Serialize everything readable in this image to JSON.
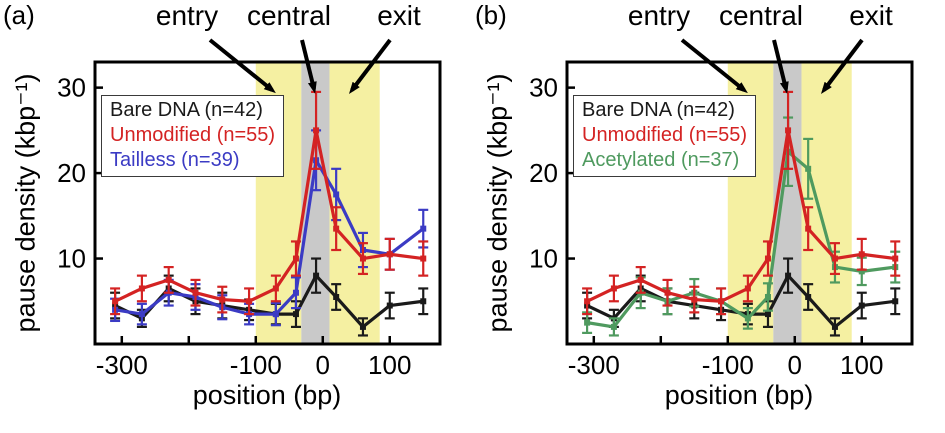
{
  "chart_data": {
    "type": "line",
    "title": "",
    "xlabel": "position (bp)",
    "ylabel": "pause density (kbp⁻¹)",
    "xlim": [
      -340,
      175
    ],
    "ylim": [
      0,
      33
    ],
    "x": [
      -310,
      -270,
      -230,
      -190,
      -150,
      -110,
      -70,
      -40,
      -10,
      20,
      60,
      100,
      150
    ],
    "xticks": [
      {
        "v": -300,
        "label": "-300"
      },
      {
        "v": -200,
        "label": ""
      },
      {
        "v": -100,
        "label": "-100"
      },
      {
        "v": 0,
        "label": "0"
      },
      {
        "v": 100,
        "label": "100"
      }
    ],
    "yticks": [
      {
        "v": 10,
        "label": "10"
      },
      {
        "v": 20,
        "label": "20"
      },
      {
        "v": 30,
        "label": "30"
      }
    ],
    "regions": [
      {
        "name": "entry",
        "from": -100,
        "to": -32,
        "color": "#f5f0a2"
      },
      {
        "name": "exit",
        "from": 10,
        "to": 85,
        "color": "#f5f0a2"
      },
      {
        "name": "central",
        "from": -32,
        "to": 10,
        "color": "#c9c9c9"
      }
    ],
    "annotations": [
      "entry",
      "central",
      "exit"
    ],
    "panels": [
      {
        "label": "(a)",
        "series": [
          {
            "name": "Bare DNA",
            "legend": "Bare DNA (n=42)",
            "color": "#1a1a1a",
            "y": [
              4.5,
              3.0,
              6.5,
              5.0,
              4.5,
              4.0,
              3.5,
              3.5,
              8.0,
              5.5,
              2.0,
              4.5,
              5.0
            ],
            "err": [
              1.5,
              1.0,
              1.5,
              1.5,
              1.5,
              1.2,
              1.2,
              1.5,
              2.0,
              1.5,
              1.0,
              1.5,
              1.5
            ]
          },
          {
            "name": "Tailless",
            "legend": "Tailless (n=39)",
            "color": "#3b3bc4",
            "y": [
              4.0,
              3.5,
              6.0,
              5.5,
              4.3,
              3.5,
              3.5,
              6.0,
              21.5,
              17.5,
              11.0,
              10.5,
              13.5
            ],
            "err": [
              1.3,
              1.2,
              1.5,
              1.5,
              1.4,
              1.2,
              1.3,
              1.8,
              3.5,
              3.0,
              2.0,
              1.8,
              2.2
            ]
          },
          {
            "name": "Unmodified",
            "legend": "Unmodified (n=55)",
            "color": "#d42323",
            "y": [
              5.0,
              6.5,
              7.5,
              6.0,
              5.2,
              5.0,
              6.5,
              10.0,
              25.0,
              13.5,
              10.0,
              10.5,
              10.0
            ],
            "err": [
              1.5,
              1.5,
              1.5,
              1.5,
              1.5,
              1.5,
              1.5,
              2.0,
              4.5,
              2.5,
              1.8,
              1.8,
              2.0
            ]
          }
        ],
        "legend_order": [
          "Bare DNA (n=42)",
          "Unmodified (n=55)",
          "Tailless (n=39)"
        ]
      },
      {
        "label": "(b)",
        "series": [
          {
            "name": "Bare DNA",
            "legend": "Bare DNA (n=42)",
            "color": "#1a1a1a",
            "y": [
              4.5,
              3.0,
              6.5,
              5.0,
              4.5,
              4.0,
              3.5,
              3.5,
              8.0,
              5.5,
              2.0,
              4.5,
              5.0
            ],
            "err": [
              1.5,
              1.0,
              1.5,
              1.5,
              1.5,
              1.2,
              1.2,
              1.5,
              2.0,
              1.5,
              1.0,
              1.5,
              1.5
            ]
          },
          {
            "name": "Acetylated",
            "legend": "Acetylated (n=37)",
            "color": "#4f9a5f",
            "y": [
              2.5,
              2.0,
              6.0,
              5.0,
              6.0,
              5.0,
              3.0,
              5.5,
              22.5,
              20.5,
              9.0,
              8.5,
              9.0
            ],
            "err": [
              1.2,
              1.0,
              1.8,
              1.5,
              1.6,
              1.5,
              1.2,
              1.6,
              4.0,
              3.5,
              1.8,
              1.6,
              1.8
            ]
          },
          {
            "name": "Unmodified",
            "legend": "Unmodified (n=55)",
            "color": "#d42323",
            "y": [
              5.0,
              6.5,
              7.5,
              6.0,
              5.2,
              5.0,
              6.5,
              10.0,
              25.0,
              13.5,
              10.0,
              10.5,
              10.0
            ],
            "err": [
              1.5,
              1.5,
              1.5,
              1.5,
              1.5,
              1.5,
              1.5,
              2.0,
              4.5,
              2.5,
              1.8,
              1.8,
              2.0
            ]
          }
        ],
        "legend_order": [
          "Bare DNA (n=42)",
          "Unmodified (n=55)",
          "Acetylated (n=37)"
        ]
      }
    ]
  }
}
